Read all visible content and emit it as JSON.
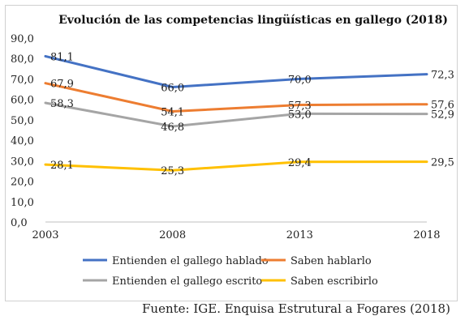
{
  "chart_data": {
    "type": "line",
    "title": "Evolución de las competencias lingüísticas en gallego (2018)",
    "xlabel": "",
    "ylabel": "",
    "x": [
      "2003",
      "2008",
      "2013",
      "2018"
    ],
    "ylim": [
      0,
      90
    ],
    "y_ticks": [
      "0,0",
      "10,0",
      "20,0",
      "30,0",
      "40,0",
      "50,0",
      "60,0",
      "70,0",
      "80,0",
      "90,0"
    ],
    "grid": false,
    "legend_position": "bottom",
    "series": [
      {
        "name": "Entienden el gallego hablado",
        "color": "#4472c4",
        "values": [
          81.1,
          66.0,
          70.0,
          72.3
        ],
        "labels": [
          "81,1",
          "66,0",
          "70,0",
          "72,3"
        ]
      },
      {
        "name": "Saben hablarlo",
        "color": "#ed7d31",
        "values": [
          67.9,
          54.1,
          57.3,
          57.6
        ],
        "labels": [
          "67,9",
          "54,1",
          "57,3",
          "57,6"
        ]
      },
      {
        "name": "Entienden el gallego escrito",
        "color": "#a5a5a5",
        "values": [
          58.3,
          46.8,
          53.0,
          52.9
        ],
        "labels": [
          "58,3",
          "46,8",
          "53,0",
          "52,9"
        ]
      },
      {
        "name": "Saben escribirlo",
        "color": "#ffc000",
        "values": [
          28.1,
          25.3,
          29.4,
          29.5
        ],
        "labels": [
          "28,1",
          "25,3",
          "29,4",
          "29,5"
        ]
      }
    ]
  },
  "source": "Fuente: IGE. Enquisa Estrutural a Fogares (2018)"
}
